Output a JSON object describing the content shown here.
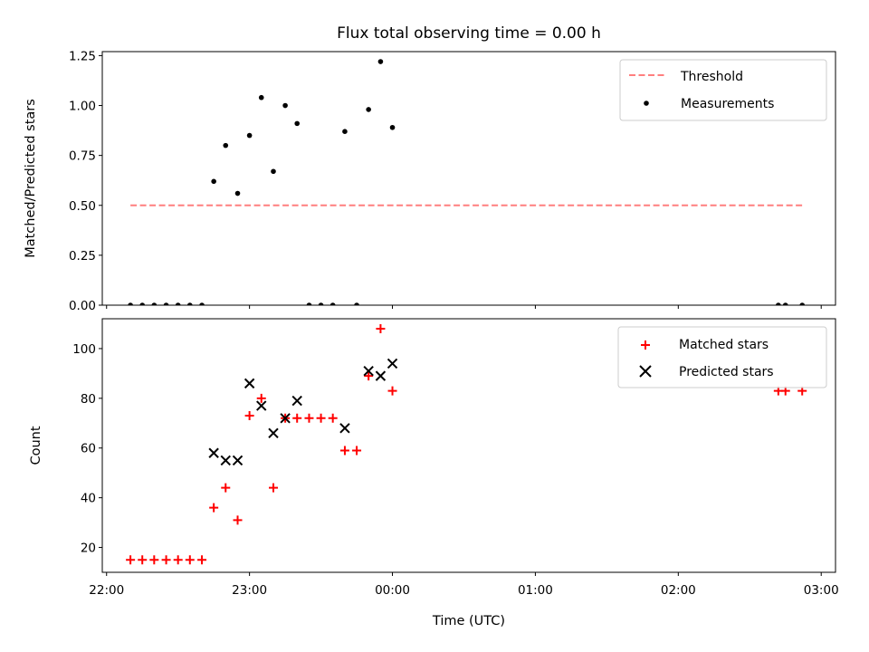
{
  "chart_data": [
    {
      "type": "scatter",
      "title": "Flux total observing time = 0.00 h",
      "ylabel": "Matched/Predicted stars",
      "ylim": [
        0,
        1.27
      ],
      "xlim": [
        -0.03,
        5.1
      ],
      "yticks": [
        0.0,
        0.25,
        0.5,
        0.75,
        1.0,
        1.25
      ],
      "ytick_labels": [
        "0.00",
        "0.25",
        "0.50",
        "0.75",
        "1.00",
        "1.25"
      ],
      "legend": {
        "position": "top-right",
        "entries": [
          "Threshold",
          "Measurements"
        ]
      },
      "threshold": {
        "name": "Threshold",
        "value": 0.5,
        "x_start": 0.167,
        "x_end": 4.867,
        "color": "#ff7f7f",
        "style": "dashed"
      },
      "series": [
        {
          "name": "Measurements",
          "marker": "dot",
          "color": "#000000",
          "x": [
            0.167,
            0.25,
            0.333,
            0.417,
            0.5,
            0.583,
            0.667,
            0.75,
            0.833,
            0.917,
            1.0,
            1.083,
            1.167,
            1.25,
            1.333,
            1.417,
            1.5,
            1.583,
            1.667,
            1.75,
            1.833,
            1.917,
            2.0,
            4.7,
            4.75,
            4.867
          ],
          "y": [
            0,
            0,
            0,
            0,
            0,
            0,
            0,
            0.62,
            0.8,
            0.56,
            0.85,
            1.04,
            0.67,
            1.0,
            0.91,
            0,
            0,
            0,
            0.87,
            0,
            0.98,
            1.22,
            0.89,
            0,
            0,
            0
          ]
        }
      ]
    },
    {
      "type": "scatter",
      "xlabel": "Time (UTC)",
      "ylabel": "Count",
      "ylim": [
        10,
        112
      ],
      "xlim": [
        -0.03,
        5.1
      ],
      "xticks": [
        0,
        1,
        2,
        3,
        4,
        5
      ],
      "xtick_labels": [
        "22:00",
        "23:00",
        "00:00",
        "01:00",
        "02:00",
        "03:00"
      ],
      "yticks": [
        20,
        40,
        60,
        80,
        100
      ],
      "ytick_labels": [
        "20",
        "40",
        "60",
        "80",
        "100"
      ],
      "legend": {
        "position": "top-right",
        "entries": [
          "Matched stars",
          "Predicted stars"
        ]
      },
      "series": [
        {
          "name": "Matched stars",
          "marker": "plus",
          "color": "#ff0000",
          "x": [
            0.167,
            0.25,
            0.333,
            0.417,
            0.5,
            0.583,
            0.667,
            0.75,
            0.833,
            0.917,
            1.0,
            1.083,
            1.167,
            1.25,
            1.333,
            1.417,
            1.5,
            1.583,
            1.667,
            1.75,
            1.833,
            1.917,
            2.0,
            4.7,
            4.75,
            4.867
          ],
          "y": [
            15,
            15,
            15,
            15,
            15,
            15,
            15,
            36,
            44,
            31,
            73,
            80,
            44,
            72,
            72,
            72,
            72,
            72,
            59,
            59,
            89,
            108,
            83,
            83,
            83,
            83
          ]
        },
        {
          "name": "Predicted stars",
          "marker": "x",
          "color": "#000000",
          "x": [
            0.75,
            0.833,
            0.917,
            1.0,
            1.083,
            1.167,
            1.25,
            1.333,
            1.667,
            1.833,
            1.917,
            2.0
          ],
          "y": [
            58,
            55,
            55,
            86,
            77,
            66,
            72,
            79,
            68,
            91,
            89,
            94
          ]
        }
      ]
    }
  ]
}
